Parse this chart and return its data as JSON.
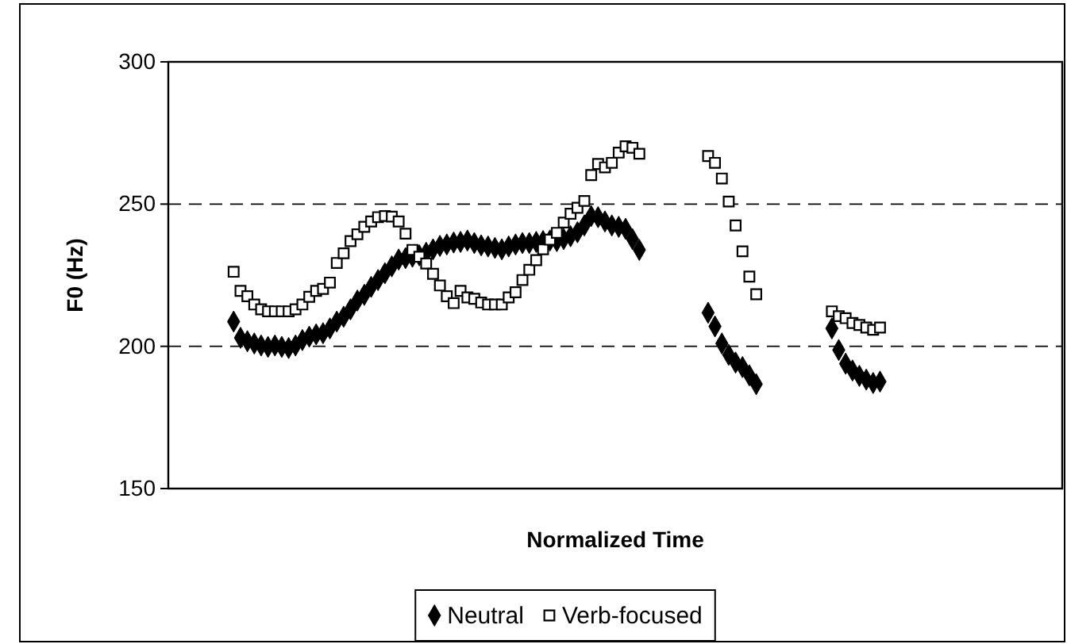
{
  "chart_data": {
    "type": "scatter",
    "xlabel": "Normalized Time",
    "ylabel": "F0 (Hz)",
    "categories": [
      null,
      null,
      null,
      null,
      null,
      null,
      null,
      null,
      null,
      null,
      null,
      null,
      null,
      null,
      null,
      null,
      null,
      null,
      null,
      null,
      null,
      null,
      null,
      null,
      null,
      null,
      null,
      null,
      null,
      null,
      null,
      null,
      null,
      null,
      null,
      null,
      null,
      null,
      null,
      null,
      null,
      null,
      null,
      null,
      null,
      null,
      null,
      null,
      null,
      null,
      null,
      null,
      null,
      null,
      null,
      null,
      null,
      null,
      null,
      null,
      null,
      null,
      null,
      null,
      null,
      null,
      null,
      null,
      null,
      null,
      null,
      null,
      null,
      null,
      null,
      null,
      null,
      null,
      null,
      null,
      null,
      null,
      null,
      null,
      null,
      null,
      null,
      null,
      null,
      null,
      null,
      null,
      null,
      null,
      null,
      null,
      null,
      null,
      null,
      null,
      null,
      null,
      null,
      null,
      null,
      null,
      null,
      null,
      null,
      null,
      null,
      null,
      null,
      null,
      null,
      null,
      null,
      null,
      null,
      null,
      null,
      null,
      null,
      null,
      null,
      null,
      null,
      null,
      null,
      null
    ],
    "series": [
      {
        "name": "Neutral",
        "color": "#000000",
        "marker": "diamond",
        "values": [
          null,
          null,
          null,
          null,
          null,
          null,
          null,
          null,
          null,
          208.7,
          203,
          201.8,
          201,
          200.3,
          199.8,
          200.3,
          199.8,
          199.4,
          200.3,
          202.2,
          203.4,
          204.2,
          204.6,
          206.3,
          208.7,
          210.4,
          213,
          216.1,
          218.1,
          220.9,
          223.3,
          225.7,
          228.1,
          230.5,
          231,
          231.5,
          232,
          232.9,
          234.1,
          235.3,
          235.8,
          236.5,
          236.7,
          237.2,
          236.3,
          235.5,
          235.1,
          234.6,
          234.1,
          235.1,
          235.8,
          236.3,
          236.3,
          236.7,
          237,
          237.2,
          237,
          237.7,
          238.7,
          240.1,
          242.5,
          245.8,
          245.4,
          243.9,
          242.5,
          242,
          241.3,
          237.7,
          233.9,
          null,
          null,
          null,
          null,
          null,
          null,
          null,
          null,
          null,
          211.8,
          207,
          201,
          197,
          194.3,
          192.7,
          189.8,
          186.7,
          null,
          null,
          null,
          null,
          null,
          null,
          null,
          null,
          null,
          null,
          206.3,
          198.7,
          193.9,
          191.5,
          189.6,
          188.3,
          187.1,
          187.6,
          null,
          null,
          null,
          null,
          null,
          null,
          null,
          null,
          null,
          null,
          null,
          null,
          null,
          null,
          null,
          null,
          null,
          null,
          null,
          null,
          null,
          null,
          null,
          null,
          null,
          null
        ]
      },
      {
        "name": "Verb-focused",
        "color": "#000000",
        "marker": "square",
        "values": [
          null,
          null,
          null,
          null,
          null,
          null,
          null,
          null,
          null,
          226.2,
          219.5,
          217.6,
          214.7,
          213,
          212.3,
          212.3,
          212.3,
          212.3,
          213,
          214.7,
          217.4,
          219.5,
          220.2,
          222.4,
          229.3,
          232.7,
          237,
          239.4,
          242,
          243.9,
          245.4,
          245.8,
          245.6,
          243.9,
          239.6,
          233.9,
          231.5,
          229.1,
          225.5,
          221.4,
          217.6,
          215.2,
          219.5,
          217.2,
          216.7,
          215.4,
          214.7,
          214.7,
          214.7,
          217.2,
          219,
          223.3,
          226.9,
          230.3,
          234.1,
          237.5,
          239.9,
          243.5,
          246.6,
          248.7,
          251.1,
          260.2,
          264.1,
          262.9,
          264.5,
          268.1,
          270.3,
          269.8,
          267.7,
          null,
          null,
          null,
          null,
          null,
          null,
          null,
          null,
          null,
          266.9,
          264.5,
          259,
          250.9,
          242.5,
          233.4,
          224.5,
          218.3,
          null,
          null,
          null,
          null,
          null,
          null,
          null,
          null,
          null,
          null,
          212.3,
          210.6,
          209.9,
          208.2,
          207.5,
          206.6,
          205.8,
          206.6,
          null,
          null,
          null,
          null,
          null,
          null,
          null,
          null,
          null,
          null,
          null,
          null,
          null,
          null,
          null,
          null,
          null,
          null,
          null,
          null,
          null,
          null,
          null,
          null,
          null,
          null
        ]
      }
    ],
    "ylim": [
      150,
      300
    ],
    "yticks": [
      150,
      200,
      250,
      300
    ],
    "grid": "y",
    "legend": "bottom",
    "tick_labels": "y"
  }
}
